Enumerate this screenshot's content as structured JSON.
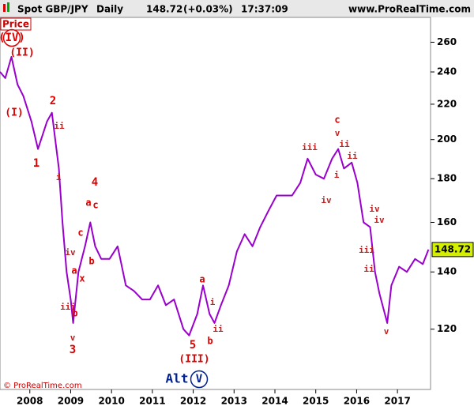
{
  "chart_data": {
    "type": "line",
    "symbol": "Spot GBP/JPY",
    "period": "Daily",
    "last": 148.72,
    "change": "(+0.03%)",
    "time": "17:37:09",
    "site": "www.ProRealTime.com",
    "panel_label": "Price",
    "copyright": "© ProRealTime.com",
    "log_scale": true,
    "xlim": [
      2007.27,
      2017.81
    ],
    "xticks": [
      2008,
      2009,
      2010,
      2011,
      2012,
      2013,
      2014,
      2015,
      2016,
      2017
    ],
    "ylim": [
      102,
      278
    ],
    "yticks": [
      120,
      140,
      160,
      180,
      200,
      220,
      240,
      260
    ],
    "series": [
      {
        "name": "Spot GBP/JPY",
        "color": "#9900cc",
        "x": [
          2007.27,
          2007.4,
          2007.55,
          2007.7,
          2007.84,
          2008.04,
          2008.2,
          2008.42,
          2008.54,
          2008.71,
          2008.8,
          2008.9,
          2009.0,
          2009.06,
          2009.19,
          2009.35,
          2009.48,
          2009.6,
          2009.75,
          2009.95,
          2010.15,
          2010.35,
          2010.55,
          2010.75,
          2010.94,
          2011.14,
          2011.33,
          2011.53,
          2011.76,
          2011.9,
          2012.1,
          2012.24,
          2012.4,
          2012.52,
          2012.68,
          2012.87,
          2013.07,
          2013.26,
          2013.45,
          2013.64,
          2013.84,
          2014.04,
          2014.23,
          2014.42,
          2014.62,
          2014.8,
          2015.0,
          2015.2,
          2015.4,
          2015.55,
          2015.69,
          2015.88,
          2016.02,
          2016.17,
          2016.33,
          2016.45,
          2016.56,
          2016.75,
          2016.85,
          2017.04,
          2017.23,
          2017.43,
          2017.62,
          2017.76
        ],
        "values": [
          240,
          236,
          250,
          232,
          225,
          210,
          195,
          210,
          215,
          185,
          160,
          140,
          130,
          122,
          140,
          150,
          160,
          150,
          145,
          145,
          150,
          135,
          133,
          130,
          130,
          135,
          128,
          130,
          120,
          118,
          125,
          135,
          125,
          122,
          128,
          135,
          148,
          155,
          150,
          158,
          165,
          172,
          172,
          172,
          178,
          190,
          182,
          180,
          190,
          195,
          185,
          188,
          178,
          160,
          158,
          140,
          132,
          122,
          135,
          142,
          140,
          145,
          143,
          148.72
        ]
      }
    ],
    "annotations": [
      "(IV)",
      "(II)",
      "(I)",
      "2",
      "ii",
      "1",
      "i",
      "4",
      "a",
      "c",
      "c",
      "iv",
      "b",
      "a",
      "x",
      "iii",
      "b",
      "v",
      "3",
      "a",
      "i",
      "ii",
      "5",
      "b",
      "(III)",
      "Alt",
      "V",
      "c",
      "v",
      "iii",
      "ii",
      "ii",
      "i",
      "iv",
      "iv",
      "iv",
      "iii",
      "ii",
      "v"
    ]
  }
}
